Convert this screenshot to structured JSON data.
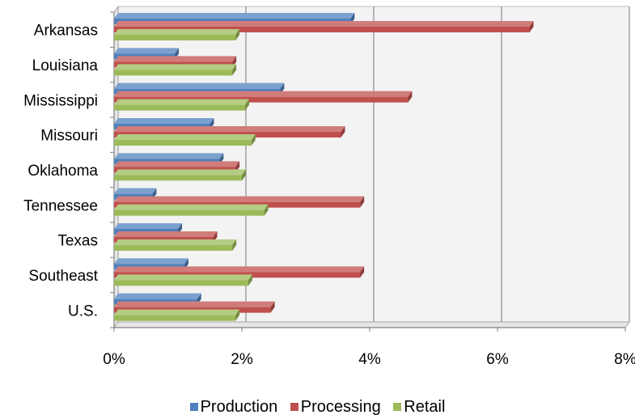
{
  "chart_data": {
    "type": "bar",
    "orientation": "horizontal",
    "style": "3d-clustered",
    "categories": [
      "Arkansas",
      "Louisiana",
      "Mississippi",
      "Missouri",
      "Oklahoma",
      "Tennessee",
      "Texas",
      "Southeast",
      "U.S."
    ],
    "series": [
      {
        "name": "Production",
        "color": "#4F81BD",
        "values": [
          3.7,
          0.95,
          2.6,
          1.5,
          1.65,
          0.6,
          1.0,
          1.1,
          1.3
        ]
      },
      {
        "name": "Processing",
        "color": "#C0504D",
        "values": [
          6.5,
          1.85,
          4.6,
          3.55,
          1.9,
          3.85,
          1.55,
          3.85,
          2.45
        ]
      },
      {
        "name": "Retail",
        "color": "#9BBB59",
        "values": [
          1.9,
          1.85,
          2.05,
          2.15,
          2.0,
          2.35,
          1.85,
          2.1,
          1.9
        ]
      }
    ],
    "x_ticks": [
      "0%",
      "2%",
      "4%",
      "6%",
      "8%"
    ],
    "xlim": [
      0,
      8
    ],
    "x_unit": "percent",
    "grid": true,
    "legend_position": "bottom",
    "title": "",
    "xlabel": "",
    "ylabel": ""
  }
}
